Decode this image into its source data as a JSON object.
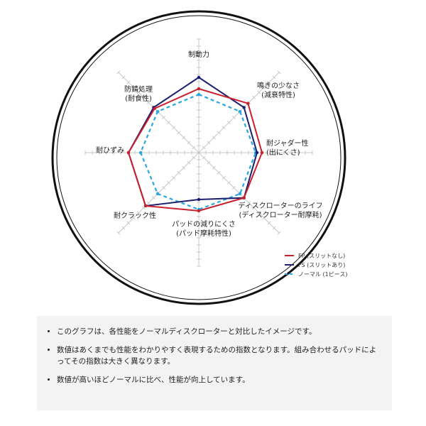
{
  "chart_data": {
    "type": "radar",
    "axes": [
      [
        "制動力"
      ],
      [
        "鳴きの少なさ",
        "(減衰特性)"
      ],
      [
        "耐ジャダー性",
        "(出にくさ)"
      ],
      [
        "ディスクローターのライフ",
        "(ディスクローター耐摩耗)"
      ],
      [
        "パッドの減りにくさ",
        "(パッド摩耗特性)"
      ],
      [
        "耐クラック性"
      ],
      [
        "耐ひずみ"
      ],
      [
        "防錆処理",
        "(耐食性)"
      ]
    ],
    "scale_note": "values in axis tick units (no numeric labels printed)",
    "range": [
      0,
      16
    ],
    "grid": true,
    "legend_position": "bottom-right",
    "series": [
      {
        "name": "FP (スリットなし)",
        "color": "#c8202c",
        "style": "solid",
        "values": [
          9.0,
          9.8,
          8.9,
          9.0,
          8.2,
          10.6,
          9.9,
          8.8
        ]
      },
      {
        "name": "FS (スリットあり)",
        "color": "#1c1f6e",
        "style": "solid",
        "values": [
          10.6,
          9.0,
          8.2,
          9.0,
          6.6,
          10.6,
          9.9,
          9.0
        ]
      },
      {
        "name": "ノーマル (1ピース)",
        "color": "#2aa7e0",
        "style": "dashed",
        "values": [
          8.2,
          8.2,
          8.0,
          8.2,
          8.0,
          8.2,
          8.2,
          8.2
        ]
      }
    ]
  },
  "notes": [
    "このグラフは、各性能をノーマルディスクローターと対比したイメージです。",
    "数値はあくまでも性能をわかりやすく表現するための指数となります。組み合わせるパッドによってその指数は大きく異なります。",
    "数値が高いほどノーマルに比べ、性能が向上しています。"
  ]
}
